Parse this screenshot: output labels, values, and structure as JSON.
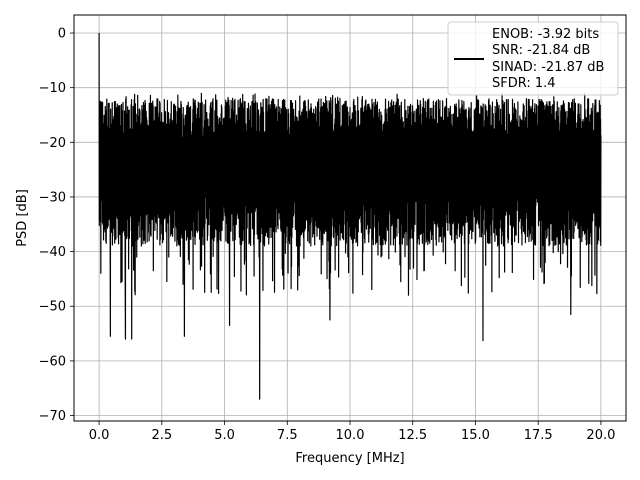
{
  "chart_data": {
    "type": "line",
    "title": "",
    "xlabel": "Frequency [MHz]",
    "ylabel": "PSD [dB]",
    "xlim": [
      -1.0,
      21.0
    ],
    "ylim": [
      -71.0,
      3.3
    ],
    "xticks": [
      0.0,
      2.5,
      5.0,
      7.5,
      10.0,
      12.5,
      15.0,
      17.5,
      20.0
    ],
    "xtick_labels": [
      "0.0",
      "2.5",
      "5.0",
      "7.5",
      "10.0",
      "12.5",
      "15.0",
      "17.5",
      "20.0"
    ],
    "yticks": [
      0,
      -10,
      -20,
      -30,
      -40,
      -50,
      -60,
      -70
    ],
    "ytick_labels": [
      "0",
      "−10",
      "−20",
      "−30",
      "−40",
      "−50",
      "−60",
      "−70"
    ],
    "grid": true,
    "legend_position": "top-right",
    "line_color": "#000000",
    "series": [
      {
        "legend_lines": [
          "ENOB: -3.92 bits",
          "SNR: -21.84 dB",
          "SINAD: -21.87 dB",
          "SFDR: 1.4"
        ],
        "x_range": [
          0.0,
          20.0
        ],
        "noise_band": {
          "upper_mean": -16,
          "lower_mean": -34,
          "envelope_top": -11,
          "typical_floor": -40
        },
        "features": [
          {
            "x": 0.0,
            "y": 0.0
          },
          {
            "x": 0.05,
            "y": -12.5
          },
          {
            "x": 0.45,
            "y": -55.5
          },
          {
            "x": 1.05,
            "y": -56.0
          },
          {
            "x": 1.3,
            "y": -56.0
          },
          {
            "x": 3.4,
            "y": -55.5
          },
          {
            "x": 5.2,
            "y": -53.5
          },
          {
            "x": 6.4,
            "y": -67.0
          },
          {
            "x": 9.2,
            "y": -52.5
          },
          {
            "x": 15.3,
            "y": -56.3
          },
          {
            "x": 18.8,
            "y": -51.5
          }
        ]
      }
    ]
  }
}
